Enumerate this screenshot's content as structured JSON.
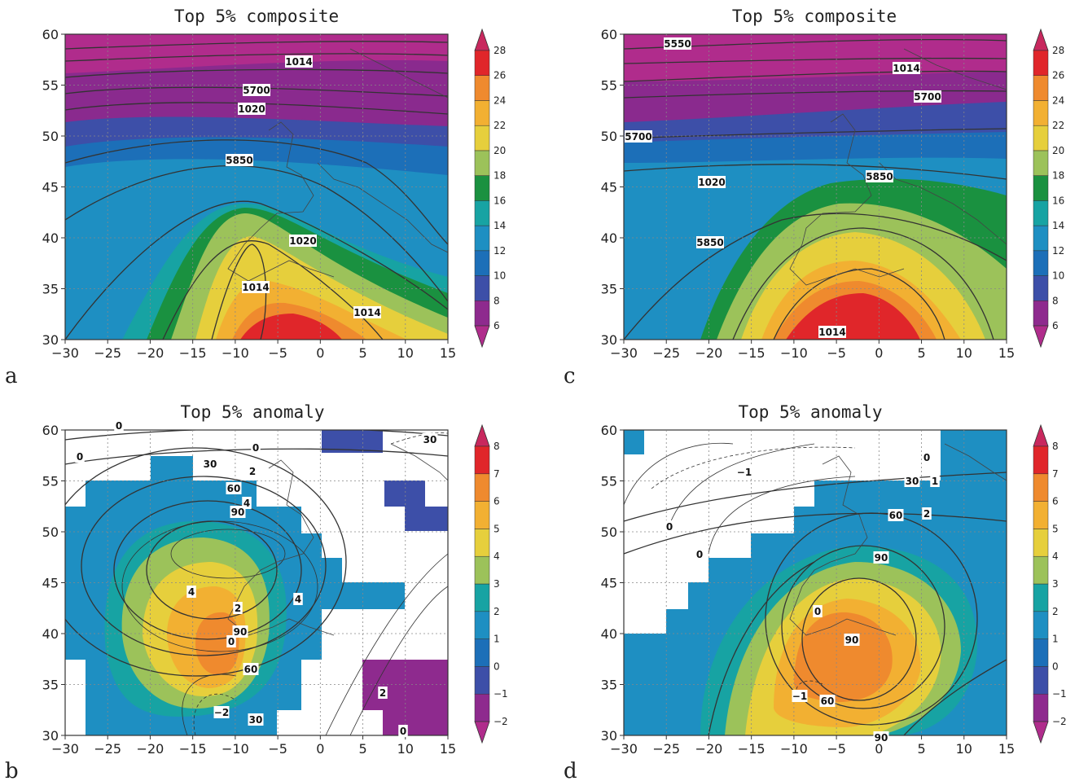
{
  "panels": [
    {
      "letter": "a",
      "title": "Top 5% composite",
      "x_ticks": [
        "-30",
        "-25",
        "-20",
        "-15",
        "-10",
        "-5",
        "0",
        "5",
        "10",
        "15"
      ],
      "y_ticks": [
        "30",
        "35",
        "40",
        "45",
        "50",
        "55",
        "60"
      ],
      "colorbar_ticks": [
        "6",
        "8",
        "10",
        "12",
        "14",
        "16",
        "18",
        "20",
        "22",
        "24",
        "26",
        "28"
      ],
      "colorbar_colors": [
        "#8e2a8e",
        "#3d4fa8",
        "#1c6fb8",
        "#1e8fc2",
        "#17a3a3",
        "#1a9140",
        "#9cc25a",
        "#e6cf3c",
        "#f2b032",
        "#ef8a2e",
        "#e0262a"
      ],
      "contour_labels": [
        "1014",
        "5700",
        "1020",
        "5850",
        "1020",
        "1014",
        "1014"
      ]
    },
    {
      "letter": "c",
      "title": "Top 5% composite",
      "x_ticks": [
        "-30",
        "-25",
        "-20",
        "-15",
        "-10",
        "-5",
        "0",
        "5",
        "10",
        "15"
      ],
      "y_ticks": [
        "30",
        "35",
        "40",
        "45",
        "50",
        "55",
        "60"
      ],
      "colorbar_ticks": [
        "6",
        "8",
        "10",
        "12",
        "14",
        "16",
        "18",
        "20",
        "22",
        "24",
        "26",
        "28"
      ],
      "colorbar_colors": [
        "#8e2a8e",
        "#3d4fa8",
        "#1c6fb8",
        "#1e8fc2",
        "#17a3a3",
        "#1a9140",
        "#9cc25a",
        "#e6cf3c",
        "#f2b032",
        "#ef8a2e",
        "#e0262a"
      ],
      "contour_labels": [
        "5550",
        "1014",
        "5700",
        "5700",
        "1020",
        "5850",
        "5850",
        "1014"
      ]
    },
    {
      "letter": "b",
      "title": "Top 5% anomaly",
      "x_ticks": [
        "-30",
        "-25",
        "-20",
        "-15",
        "-10",
        "-5",
        "0",
        "5",
        "10",
        "15"
      ],
      "y_ticks": [
        "30",
        "35",
        "40",
        "45",
        "50",
        "55",
        "60"
      ],
      "colorbar_ticks": [
        "-2",
        "-1",
        "0",
        "1",
        "2",
        "3",
        "4",
        "5",
        "6",
        "7",
        "8"
      ],
      "colorbar_colors": [
        "#8e2a8e",
        "#3d4fa8",
        "#1c6fb8",
        "#1e8fc2",
        "#17a3a3",
        "#9cc25a",
        "#e6cf3c",
        "#f2b032",
        "#ef8a2e",
        "#e0262a"
      ],
      "contour_labels": [
        "0",
        "0",
        "0",
        "30",
        "2",
        "60",
        "4",
        "90",
        "4",
        "4",
        "2",
        "90",
        "0",
        "60",
        "-2",
        "30",
        "2",
        "0",
        "30"
      ]
    },
    {
      "letter": "d",
      "title": "Top 5% anomaly",
      "x_ticks": [
        "-30",
        "-25",
        "-20",
        "-15",
        "-10",
        "-5",
        "0",
        "5",
        "10",
        "15"
      ],
      "y_ticks": [
        "30",
        "35",
        "40",
        "45",
        "50",
        "55",
        "60"
      ],
      "colorbar_ticks": [
        "-2",
        "-1",
        "0",
        "1",
        "2",
        "3",
        "4",
        "5",
        "6",
        "7",
        "8"
      ],
      "colorbar_colors": [
        "#8e2a8e",
        "#3d4fa8",
        "#1c6fb8",
        "#1e8fc2",
        "#17a3a3",
        "#9cc25a",
        "#e6cf3c",
        "#f2b032",
        "#ef8a2e",
        "#e0262a"
      ],
      "contour_labels": [
        "-1",
        "0",
        "30",
        "1",
        "60",
        "2",
        "0",
        "0",
        "90",
        "0",
        "90",
        "-1",
        "60",
        "90"
      ]
    }
  ]
}
